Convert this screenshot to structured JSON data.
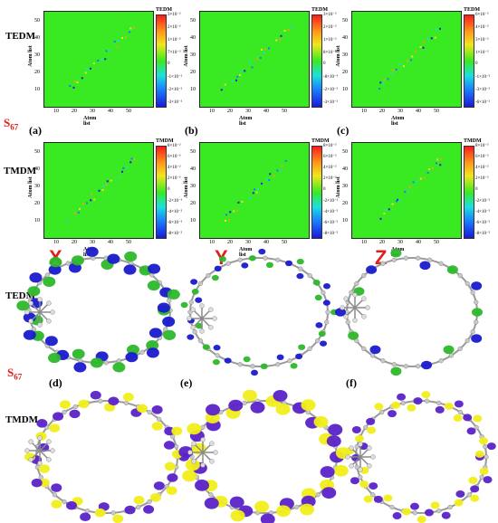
{
  "state_label": {
    "main": "S",
    "sub": "67"
  },
  "row_labels": {
    "tedm": "TEDM",
    "tmdm": "TMDM"
  },
  "axis_title": "Atom list",
  "x_ticks": [
    "10",
    "20",
    "30",
    "40",
    "50"
  ],
  "y_ticks": [
    "50",
    "40",
    "30",
    "20",
    "10"
  ],
  "heatmaps": [
    {
      "id": "a",
      "letter": "(a)",
      "cbar_title": "TEDM",
      "cbar_ticks": [
        "3×10⁻²",
        "2×10⁻²",
        "1×10⁻²",
        "7×10⁻³",
        "0",
        "-1×10⁻²",
        "-2×10⁻²",
        "-3×10⁻²"
      ]
    },
    {
      "id": "b",
      "letter": "(b)",
      "cbar_title": "TEDM",
      "cbar_ticks": [
        "3×10⁻²",
        "2×10⁻²",
        "1×10⁻²",
        "8×10⁻³",
        "0",
        "-8×10⁻³",
        "-2×10⁻²",
        "-3×10⁻²"
      ]
    },
    {
      "id": "c",
      "letter": "(c)",
      "cbar_title": "TEDM",
      "cbar_ticks": [
        "6×10⁻²",
        "4×10⁻²",
        "3×10⁻²",
        "1×10⁻²",
        "0",
        "-1×10⁻²",
        "-3×10⁻²",
        "-6×10⁻²"
      ]
    },
    {
      "id": "a2",
      "letter": "",
      "cbar_title": "TMDM",
      "cbar_ticks": [
        "8×10⁻²",
        "6×10⁻²",
        "4×10⁻²",
        "2×10⁻²",
        "0",
        "-2×10⁻²",
        "-4×10⁻²",
        "-6×10⁻²",
        "-8×10⁻²"
      ]
    },
    {
      "id": "b2",
      "letter": "",
      "cbar_title": "TMDM",
      "cbar_ticks": [
        "8×10⁻²",
        "6×10⁻²",
        "4×10⁻²",
        "2×10⁻²",
        "0",
        "-2×10⁻²",
        "-4×10⁻²",
        "-6×10⁻²",
        "-8×10⁻²"
      ]
    },
    {
      "id": "c2",
      "letter": "",
      "cbar_title": "TMDM",
      "cbar_ticks": [
        "8×10⁻²",
        "6×10⁻²",
        "4×10⁻²",
        "2×10⁻²",
        "0",
        "-2×10⁻²",
        "-4×10⁻²",
        "-6×10⁻²",
        "-8×10⁻²"
      ]
    }
  ],
  "molecule_letters": [
    "X",
    "Y",
    "Z"
  ],
  "molecule_panel_letters": [
    "(d)",
    "(e)",
    "(f)"
  ],
  "colors": {
    "heat_background": "#39ea22",
    "red_label": "#e0201b",
    "tedm_positive": "#2db82a",
    "tedm_negative": "#1a1acf",
    "tmdm_positive": "#f2ee1a",
    "tmdm_negative": "#5a22c8",
    "atoms": "#c8c8c8"
  }
}
